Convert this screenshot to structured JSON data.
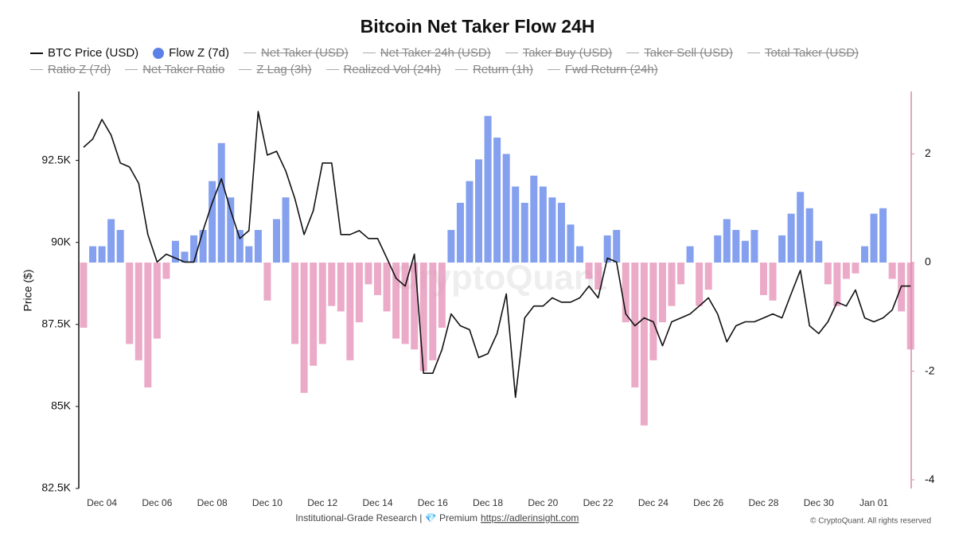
{
  "chart_data": {
    "type": "bar-line",
    "title": "Bitcoin Net Taker Flow 24H",
    "y_label": "Price ($)",
    "categories": [
      null,
      null,
      "Dec 04",
      null,
      null,
      null,
      null,
      null,
      "Dec 06",
      null,
      null,
      null,
      null,
      null,
      "Dec 08",
      null,
      null,
      null,
      null,
      null,
      "Dec 10",
      null,
      null,
      null,
      null,
      null,
      "Dec 12",
      null,
      null,
      null,
      null,
      null,
      "Dec 14",
      null,
      null,
      null,
      null,
      null,
      "Dec 16",
      null,
      null,
      null,
      null,
      null,
      "Dec 18",
      null,
      null,
      null,
      null,
      null,
      "Dec 20",
      null,
      null,
      null,
      null,
      null,
      "Dec 22",
      null,
      null,
      null,
      null,
      null,
      "Dec 24",
      null,
      null,
      null,
      null,
      null,
      "Dec 26",
      null,
      null,
      null,
      null,
      null,
      "Dec 28",
      null,
      null,
      null,
      null,
      null,
      "Dec 30",
      null,
      null,
      null,
      null,
      null,
      "Jan 01",
      null,
      null,
      null,
      null
    ],
    "series": [
      {
        "name": "BTC Price (USD)",
        "kind": "line",
        "axis": "y",
        "color": "#111111",
        "values": [
          92900,
          93150,
          93750,
          93270,
          92420,
          92300,
          91800,
          90240,
          89400,
          89640,
          89520,
          89400,
          89400,
          90360,
          91210,
          91940,
          90970,
          90120,
          90360,
          93990,
          92660,
          92780,
          92180,
          91330,
          90240,
          90970,
          92420,
          92420,
          90240,
          90240,
          90360,
          90120,
          90120,
          89520,
          88910,
          88670,
          89640,
          86010,
          86010,
          86730,
          87820,
          87460,
          87340,
          86490,
          86610,
          87220,
          88430,
          85280,
          87700,
          88060,
          88060,
          88310,
          88180,
          88180,
          88310,
          88670,
          88310,
          89520,
          89400,
          87820,
          87460,
          87700,
          87580,
          86850,
          87580,
          87700,
          87820,
          88060,
          88310,
          87820,
          86970,
          87460,
          87580,
          87580,
          87700,
          87820,
          87700,
          88430,
          89150,
          87460,
          87220,
          87580,
          88180,
          88060,
          88550,
          87700,
          87580,
          87700,
          87940,
          88670,
          88670
        ]
      },
      {
        "name": "Flow Z (7d)",
        "kind": "bar",
        "axis": "y2",
        "color": "#5b80e8",
        "negative_color": "#e48fb5",
        "values": [
          -1.2,
          0.3,
          0.3,
          0.8,
          0.6,
          -1.5,
          -1.8,
          -2.3,
          -1.4,
          -0.3,
          0.4,
          0.2,
          0.5,
          0.6,
          1.5,
          2.2,
          1.2,
          0.6,
          0.3,
          0.6,
          -0.7,
          0.8,
          1.2,
          -1.5,
          -2.4,
          -1.9,
          -1.5,
          -0.8,
          -0.9,
          -1.8,
          -1.1,
          -0.4,
          -0.6,
          -0.9,
          -1.4,
          -1.5,
          -1.6,
          -2.0,
          -1.8,
          -1.2,
          0.6,
          1.1,
          1.5,
          1.9,
          2.7,
          2.3,
          2.0,
          1.4,
          1.1,
          1.6,
          1.4,
          1.2,
          1.1,
          0.7,
          0.3,
          -0.3,
          -0.5,
          0.5,
          0.6,
          -1.1,
          -2.3,
          -3.0,
          -1.8,
          -1.1,
          -0.8,
          -0.4,
          0.3,
          -0.8,
          -0.5,
          0.5,
          0.8,
          0.6,
          0.4,
          0.6,
          -0.6,
          -0.7,
          0.5,
          0.9,
          1.3,
          1.0,
          0.4,
          -0.4,
          -0.8,
          -0.3,
          -0.2,
          0.3,
          0.9,
          1.0,
          -0.3,
          -0.9,
          -1.6
        ]
      }
    ],
    "legend_hidden": [
      "Net Taker (USD)",
      "Net Taker 24h (USD)",
      "Taker Buy (USD)",
      "Taker Sell (USD)",
      "Total Taker (USD)",
      "Ratio Z (7d)",
      "Net Taker Ratio",
      "Z Lag (3h)",
      "Realized Vol (24h)",
      "Return (1h)",
      "Fwd Return (24h)"
    ],
    "ylim": [
      82500,
      94600
    ],
    "yticks": [
      {
        "value": 82500,
        "label": "82.5K"
      },
      {
        "value": 85000,
        "label": "85K"
      },
      {
        "value": 87500,
        "label": "87.5K"
      },
      {
        "value": 90000,
        "label": "90K"
      },
      {
        "value": 92500,
        "label": "92.5K"
      }
    ],
    "y2lim": [
      -4.16,
      3.15
    ],
    "y2ticks": [
      -4,
      -2,
      0,
      2
    ],
    "y2_axis_color": "#d98aaa",
    "watermark": "CryptoQuant",
    "source": "Institutional-Grade Research | 💎 Premium",
    "link": "https://adlerinsight.com",
    "copyright": "© CryptoQuant. All rights reserved"
  }
}
